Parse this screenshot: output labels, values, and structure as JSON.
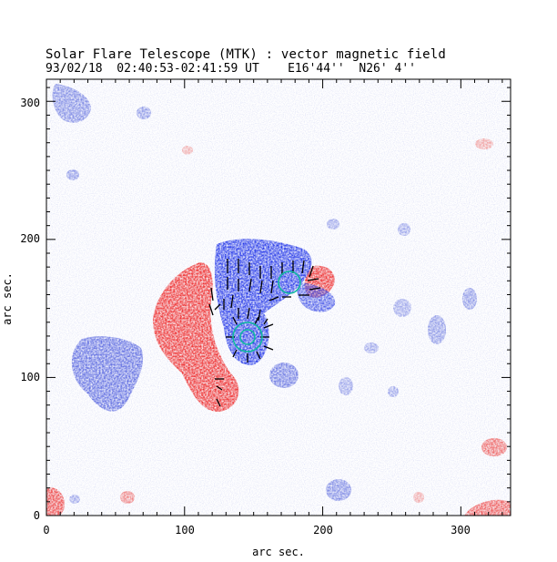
{
  "header": {
    "title": "Solar Flare Telescope (MTK) : vector magnetic field",
    "subtitle": "93/02/18  02:40:53-02:41:59 UT    E16'44''  N26' 4''"
  },
  "axes": {
    "xlabel": "arc sec.",
    "ylabel": "arc sec.",
    "xlim": [
      0,
      336
    ],
    "ylim": [
      0,
      316
    ],
    "x_ticks": [
      "0",
      "100",
      "200",
      "300"
    ],
    "y_ticks": [
      "0",
      "100",
      "200",
      "300"
    ]
  },
  "colors": {
    "positive_polarity": "#e03030",
    "negative_polarity": "#2a3ee0",
    "vectors": "#000000",
    "markers": "#10b8a0"
  },
  "icons": [
    "teal-circle-marker",
    "teal-circle-marker"
  ]
}
